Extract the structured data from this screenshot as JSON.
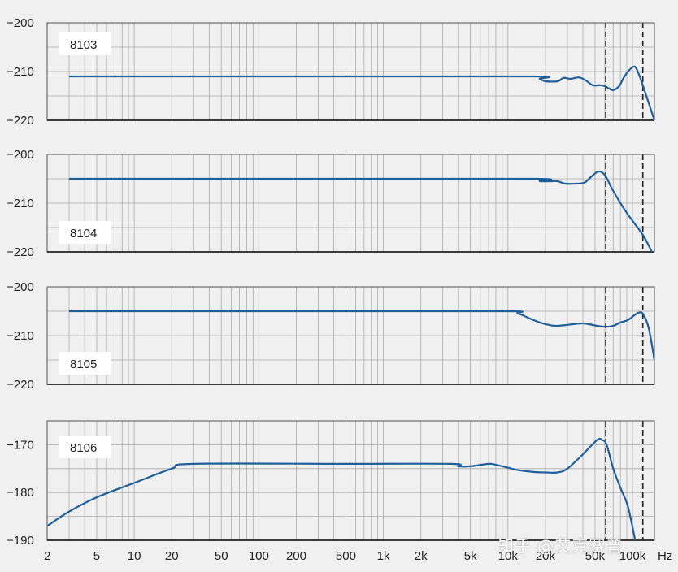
{
  "watermark": "知乎 @艾克赛普",
  "colors": {
    "curve": "#1f5f9a",
    "grid": "#aaaaaa",
    "frame": "#555555",
    "background": "#f0f0f0",
    "plot": "#f0f0f0"
  },
  "chart_data": [
    {
      "type": "line",
      "series": [
        {
          "name": "8103",
          "x": [
            3,
            500,
            16000,
            18000,
            20000,
            25000,
            28000,
            32000,
            37000,
            42000,
            48000,
            55000,
            60000,
            65000,
            70000,
            78000,
            84000,
            92000,
            102000,
            108000,
            118000,
            150000
          ],
          "y": [
            -211,
            -211,
            -211,
            -211.5,
            -212,
            -212,
            -211.3,
            -211.5,
            -211.2,
            -211.8,
            -212.8,
            -212.8,
            -213,
            -213.5,
            -213.8,
            -213,
            -211.5,
            -210,
            -209,
            -209.5,
            -212,
            -220
          ]
        }
      ],
      "ylim": [
        -220,
        -200
      ],
      "yticks": [
        -200,
        -210,
        -220
      ],
      "xlim": [
        2,
        150000
      ],
      "xscale": "log",
      "vlines": [
        61000,
        121000
      ]
    },
    {
      "type": "line",
      "series": [
        {
          "name": "8104",
          "x": [
            3,
            500,
            17000,
            18000,
            22000,
            25000,
            29000,
            35000,
            41000,
            47000,
            52000,
            56000,
            61000,
            70000,
            90000,
            121000,
            143000
          ],
          "y": [
            -205,
            -205,
            -205,
            -205.5,
            -205.5,
            -205.5,
            -206,
            -206,
            -205.8,
            -204.5,
            -203.6,
            -203.6,
            -204.5,
            -207.5,
            -212,
            -216.5,
            -220
          ]
        }
      ],
      "ylim": [
        -220,
        -200
      ],
      "yticks": [
        -200,
        -210,
        -220
      ],
      "xlim": [
        2,
        150000
      ],
      "xscale": "log",
      "vlines": [
        61000,
        121000
      ]
    },
    {
      "type": "line",
      "series": [
        {
          "name": "8105",
          "x": [
            3,
            500,
            10000,
            12000,
            15000,
            19000,
            24000,
            30000,
            40000,
            52000,
            61000,
            70000,
            80000,
            92000,
            105000,
            112000,
            121000,
            135000,
            150000
          ],
          "y": [
            -205,
            -205,
            -205,
            -205.4,
            -206.5,
            -207.5,
            -208,
            -207.8,
            -207.5,
            -208,
            -208.2,
            -208,
            -207.3,
            -206.8,
            -205.7,
            -205.3,
            -205.5,
            -208.5,
            -215
          ]
        }
      ],
      "ylim": [
        -220,
        -200
      ],
      "yticks": [
        -200,
        -210,
        -220
      ],
      "xlim": [
        2,
        150000
      ],
      "xscale": "log",
      "vlines": [
        61000,
        121000
      ]
    },
    {
      "type": "line",
      "series": [
        {
          "name": "8106",
          "x": [
            2,
            3,
            5,
            10,
            20,
            30,
            500,
            3500,
            4000,
            5000,
            7000,
            8000,
            10000,
            12000,
            16000,
            20000,
            25000,
            30000,
            40000,
            52000,
            57000,
            62000,
            70000,
            80000,
            92000,
            105000
          ],
          "y": [
            -187,
            -184,
            -181,
            -178,
            -175,
            -174,
            -174,
            -174,
            -174.5,
            -174.5,
            -174,
            -174.2,
            -174.8,
            -175.3,
            -175.7,
            -175.8,
            -175.8,
            -175,
            -172,
            -169,
            -169,
            -170,
            -175,
            -179,
            -183,
            -190
          ]
        }
      ],
      "ylim": [
        -190,
        -165
      ],
      "yticks": [
        -170,
        -180,
        -190
      ],
      "xlim": [
        2,
        150000
      ],
      "xscale": "log",
      "vlines": [
        61000,
        121000
      ]
    }
  ],
  "x_axis": {
    "ticks": [
      {
        "value": 2,
        "label": "2"
      },
      {
        "value": 5,
        "label": "5"
      },
      {
        "value": 10,
        "label": "10"
      },
      {
        "value": 20,
        "label": "20"
      },
      {
        "value": 50,
        "label": "50"
      },
      {
        "value": 100,
        "label": "100"
      },
      {
        "value": 200,
        "label": "200"
      },
      {
        "value": 500,
        "label": "500"
      },
      {
        "value": 1000,
        "label": "1k"
      },
      {
        "value": 2000,
        "label": "2k"
      },
      {
        "value": 5000,
        "label": "5k"
      },
      {
        "value": 10000,
        "label": "10k"
      },
      {
        "value": 20000,
        "label": "20k"
      },
      {
        "value": 50000,
        "label": "50k"
      },
      {
        "value": 100000,
        "label": "100k"
      }
    ],
    "unit": "Hz"
  }
}
